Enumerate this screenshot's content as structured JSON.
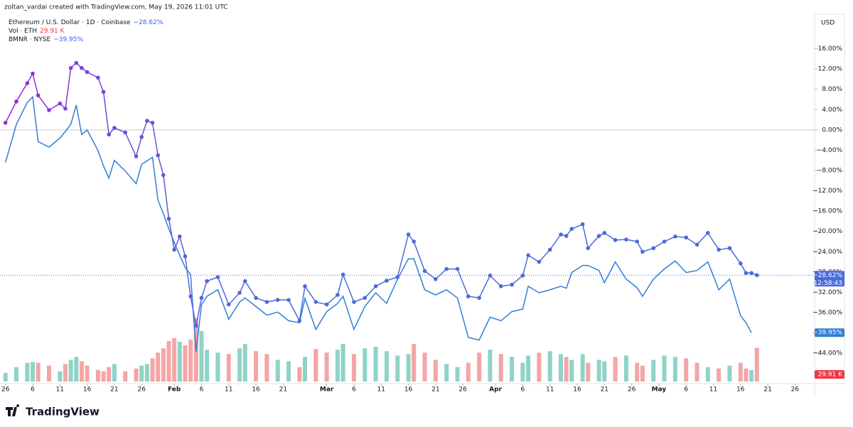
{
  "chart_data": {
    "type": "line",
    "watermark": "zoltan_vardai created with TradingView.com, May 19, 2026 11:01 UTC",
    "brand": "TradingView",
    "currency": "USD",
    "countdown": "12:58:43",
    "ylim": [
      -50,
      22.8
    ],
    "yticks": [
      {
        "value": 16,
        "label": "16.00%"
      },
      {
        "value": 12,
        "label": "12.00%"
      },
      {
        "value": 8,
        "label": "8.00%"
      },
      {
        "value": 4,
        "label": "4.00%"
      },
      {
        "value": 0,
        "label": "0.00%"
      },
      {
        "value": -4,
        "label": "−4.00%"
      },
      {
        "value": -8,
        "label": "−8.00%"
      },
      {
        "value": -12,
        "label": "−12.00%"
      },
      {
        "value": -16,
        "label": "−16.00%"
      },
      {
        "value": -20,
        "label": "−20.00%"
      },
      {
        "value": -24,
        "label": "−24.00%"
      },
      {
        "value": -28,
        "label": "−28.00%"
      },
      {
        "value": -32,
        "label": "−32.00%"
      },
      {
        "value": -36,
        "label": "−36.00%"
      },
      {
        "value": -40,
        "label": "−40.00%"
      },
      {
        "value": -44,
        "label": "−44.00%"
      }
    ],
    "xticks": [
      {
        "value": "Jan 1",
        "label": "26"
      },
      {
        "value": "Jan 6",
        "label": "6"
      },
      {
        "value": "Jan 11",
        "label": "11"
      },
      {
        "value": "Jan 16",
        "label": "16"
      },
      {
        "value": "Jan 21",
        "label": "21"
      },
      {
        "value": "Jan 26",
        "label": "26"
      },
      {
        "value": "Feb 1",
        "label": "Feb"
      },
      {
        "value": "Feb 6",
        "label": "6"
      },
      {
        "value": "Feb 11",
        "label": "11"
      },
      {
        "value": "Feb 16",
        "label": "16"
      },
      {
        "value": "Feb 21",
        "label": "21"
      },
      {
        "value": "Mar 1",
        "label": "Mar"
      },
      {
        "value": "Mar 6",
        "label": "6"
      },
      {
        "value": "Mar 11",
        "label": "11"
      },
      {
        "value": "Mar 16",
        "label": "16"
      },
      {
        "value": "Mar 21",
        "label": "21"
      },
      {
        "value": "Mar 26",
        "label": "26"
      },
      {
        "value": "Apr 1",
        "label": "Apr"
      },
      {
        "value": "Apr 6",
        "label": "6"
      },
      {
        "value": "Apr 11",
        "label": "11"
      },
      {
        "value": "Apr 16",
        "label": "16"
      },
      {
        "value": "Apr 21",
        "label": "21"
      },
      {
        "value": "Apr 26",
        "label": "26"
      },
      {
        "value": "May 1",
        "label": "May"
      },
      {
        "value": "May 6",
        "label": "6"
      },
      {
        "value": "May 11",
        "label": "11"
      },
      {
        "value": "May 16",
        "label": "16"
      },
      {
        "value": "May 21",
        "label": "21"
      },
      {
        "value": "May 26",
        "label": "26"
      }
    ],
    "x": [
      "Jan 1",
      "Jan 3",
      "Jan 5",
      "Jan 6",
      "Jan 7",
      "Jan 9",
      "Jan 11",
      "Jan 12",
      "Jan 13",
      "Jan 14",
      "Jan 15",
      "Jan 16",
      "Jan 18",
      "Jan 19",
      "Jan 20",
      "Jan 21",
      "Jan 23",
      "Jan 25",
      "Jan 26",
      "Jan 27",
      "Jan 28",
      "Jan 29",
      "Jan 30",
      "Jan 31",
      "Feb 1",
      "Feb 2",
      "Feb 3",
      "Feb 4",
      "Feb 5",
      "Feb 6",
      "Feb 7",
      "Feb 9",
      "Feb 11",
      "Feb 13",
      "Feb 14",
      "Feb 16",
      "Feb 18",
      "Feb 20",
      "Feb 22",
      "Feb 24",
      "Feb 25",
      "Feb 27",
      "Mar 1",
      "Mar 3",
      "Mar 4",
      "Mar 6",
      "Mar 8",
      "Mar 10",
      "Mar 12",
      "Mar 14",
      "Mar 16",
      "Mar 17",
      "Mar 19",
      "Mar 21",
      "Mar 23",
      "Mar 25",
      "Mar 27",
      "Mar 29",
      "Mar 31",
      "Apr 2",
      "Apr 4",
      "Apr 6",
      "Apr 7",
      "Apr 9",
      "Apr 11",
      "Apr 13",
      "Apr 14",
      "Apr 15",
      "Apr 17",
      "Apr 18",
      "Apr 20",
      "Apr 21",
      "Apr 23",
      "Apr 25",
      "Apr 27",
      "Apr 28",
      "Apr 30",
      "May 2",
      "May 4",
      "May 6",
      "May 8",
      "May 10",
      "May 12",
      "May 14",
      "May 16",
      "May 17",
      "May 18",
      "May 19"
    ],
    "zero_line": 0,
    "series": [
      {
        "name": "Ethereum / U.S. Dollar · 1D · Coinbase",
        "color": "#4a6bdc",
        "gradient": [
          "#9c27d8",
          "#4a6bdc"
        ],
        "markers": true,
        "last_label": "−28.62%",
        "values": [
          1.4,
          5.6,
          9.2,
          11.1,
          6.8,
          3.9,
          5.2,
          4.2,
          12.2,
          13.2,
          12.2,
          11.4,
          10.3,
          7.5,
          -0.9,
          0.4,
          -0.5,
          -5.2,
          -1.4,
          1.8,
          1.4,
          -5.0,
          -8.9,
          -17.5,
          -23.6,
          -21.0,
          -24.9,
          -32.8,
          -38.6,
          -33.1,
          -29.8,
          -29.0,
          -34.4,
          -32.1,
          -29.8,
          -33.1,
          -33.9,
          -33.5,
          -33.5,
          -37.6,
          -30.8,
          -33.9,
          -34.4,
          -32.5,
          -28.5,
          -33.9,
          -33.1,
          -30.8,
          -29.7,
          -29.0,
          -20.6,
          -22.0,
          -27.8,
          -29.4,
          -27.4,
          -27.4,
          -32.8,
          -33.1,
          -28.7,
          -30.8,
          -30.5,
          -28.7,
          -24.7,
          -26.0,
          -23.6,
          -20.6,
          -20.9,
          -19.5,
          -18.6,
          -23.3,
          -20.9,
          -20.3,
          -21.7,
          -21.6,
          -22.0,
          -24.0,
          -23.3,
          -22.0,
          -21.0,
          -21.2,
          -22.6,
          -20.3,
          -23.6,
          -23.3,
          -26.3,
          -28.2,
          -28.2,
          -28.62
        ]
      },
      {
        "name": "BMNR · NYSE",
        "color": "#2f7fd6",
        "markers": false,
        "last_label": "−39.95%",
        "values": [
          -6.4,
          1.1,
          5.4,
          6.5,
          -2.3,
          -3.4,
          -1.6,
          -0.3,
          1.1,
          4.9,
          -0.9,
          0,
          -4.1,
          -7.1,
          -9.5,
          -6.0,
          -8.1,
          -10.6,
          -6.8,
          -6.1,
          -5.4,
          -13.8,
          -16.5,
          -19.5,
          -22.2,
          -24.7,
          -27.1,
          -28.5,
          -43.7,
          -34.4,
          -32.8,
          -31.5,
          -37.3,
          -33.9,
          -33.1,
          -34.8,
          -36.5,
          -35.9,
          -37.6,
          -38.0,
          -33.2,
          -39.3,
          -35.8,
          -34.2,
          -32.8,
          -39.3,
          -34.8,
          -32.1,
          -34.2,
          -29.4,
          -25.4,
          -25.4,
          -31.5,
          -32.5,
          -31.5,
          -33.1,
          -40.9,
          -41.4,
          -36.9,
          -37.6,
          -35.8,
          -35.3,
          -30.8,
          -32.1,
          -31.5,
          -30.8,
          -31.2,
          -28.1,
          -26.7,
          -26.7,
          -27.7,
          -30.1,
          -26.0,
          -29.4,
          -31.1,
          -32.8,
          -29.4,
          -27.4,
          -25.8,
          -28.1,
          -27.7,
          -26.0,
          -31.5,
          -29.4,
          -36.6,
          -38.0,
          -39.95,
          null
        ]
      }
    ],
    "volume": {
      "name": "Vol · ETH",
      "last_label": "29.91 K",
      "ylim": [
        0,
        100
      ],
      "up_color": "#8fd3c7",
      "down_color": "#f4a5a5",
      "values": [
        7.7,
        12.8,
        16.6,
        17.3,
        16.6,
        14.1,
        9,
        15.4,
        19.2,
        21.8,
        17.9,
        14.1,
        10.2,
        9,
        12.8,
        15.4,
        9,
        11.5,
        14.1,
        15.4,
        20.5,
        25.6,
        29.4,
        35.8,
        38.4,
        35.2,
        32,
        37.1,
        56.3,
        44.8,
        28.2,
        25.6,
        24.3,
        29.4,
        33.3,
        26.9,
        24.3,
        19.2,
        17.9,
        12.8,
        21.8,
        28.8,
        25.6,
        28.2,
        33.3,
        24.3,
        29.4,
        30.7,
        26.9,
        23,
        24.3,
        33.3,
        25.6,
        19.2,
        15.4,
        12.8,
        16.6,
        25.6,
        28.2,
        24.3,
        21.8,
        16.6,
        23,
        25.6,
        26.9,
        24.3,
        21.8,
        19.2,
        24.3,
        16.6,
        19.2,
        17.9,
        21.8,
        23,
        16.6,
        14.1,
        19.2,
        23,
        21.8,
        20.5,
        16.6,
        12.8,
        11.5,
        14.1,
        16.6,
        11.5,
        10.2,
        29.91
      ]
    }
  }
}
